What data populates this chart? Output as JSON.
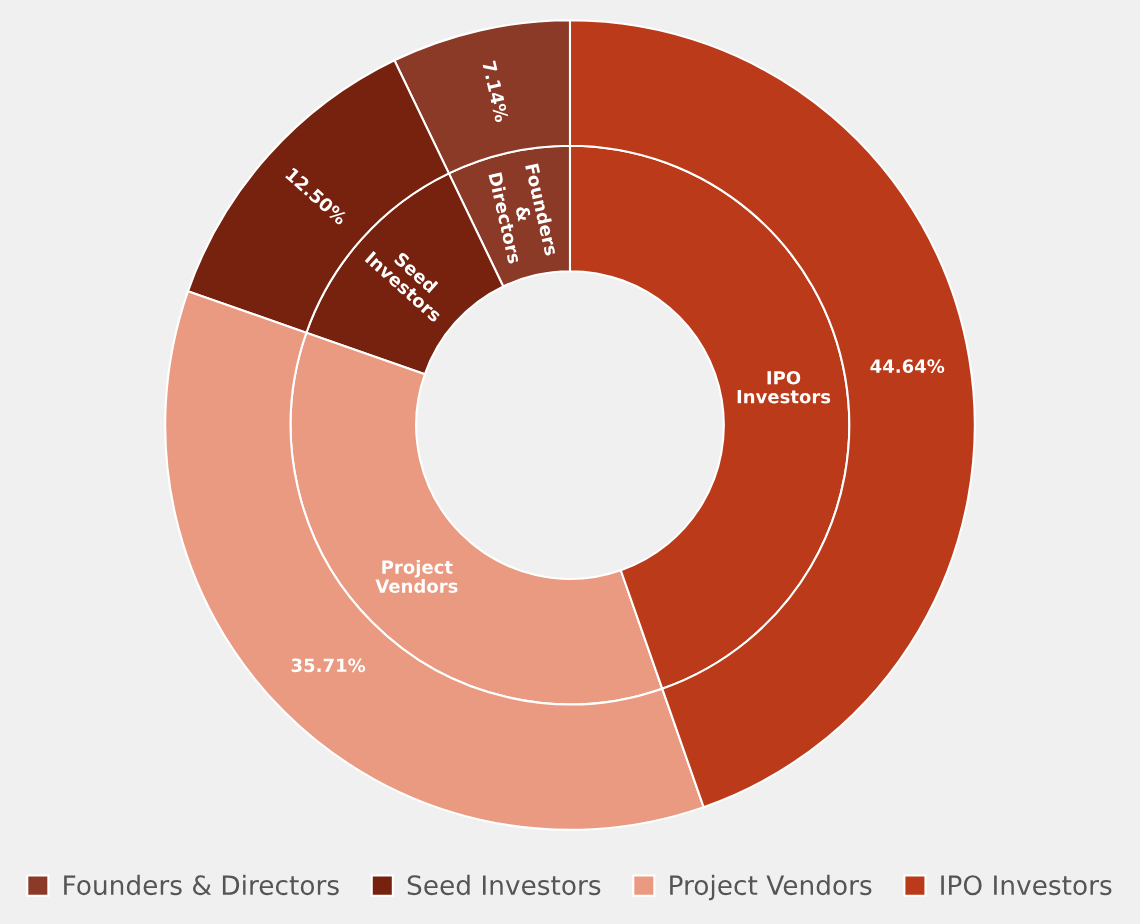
{
  "chart_data": {
    "type": "donut",
    "categories": [
      "Founders & Directors",
      "Seed Investors",
      "Project Vendors",
      "IPO Investors"
    ],
    "colors": [
      "#8c3a28",
      "#76220e",
      "#e99a80",
      "#bb3a1a"
    ],
    "series": [
      {
        "values": [
          7.14,
          12.5,
          35.71,
          44.64
        ],
        "value_labels": [
          "Founders & Directors",
          "Seed Investors",
          "Project Vendors",
          "IPO Investors"
        ]
      },
      {
        "values": [
          7.14,
          12.5,
          35.71,
          44.64
        ],
        "value_labels": [
          "7.14%",
          "12.50%",
          "35.71%",
          "44.64%"
        ]
      }
    ],
    "legend": "bottom"
  }
}
